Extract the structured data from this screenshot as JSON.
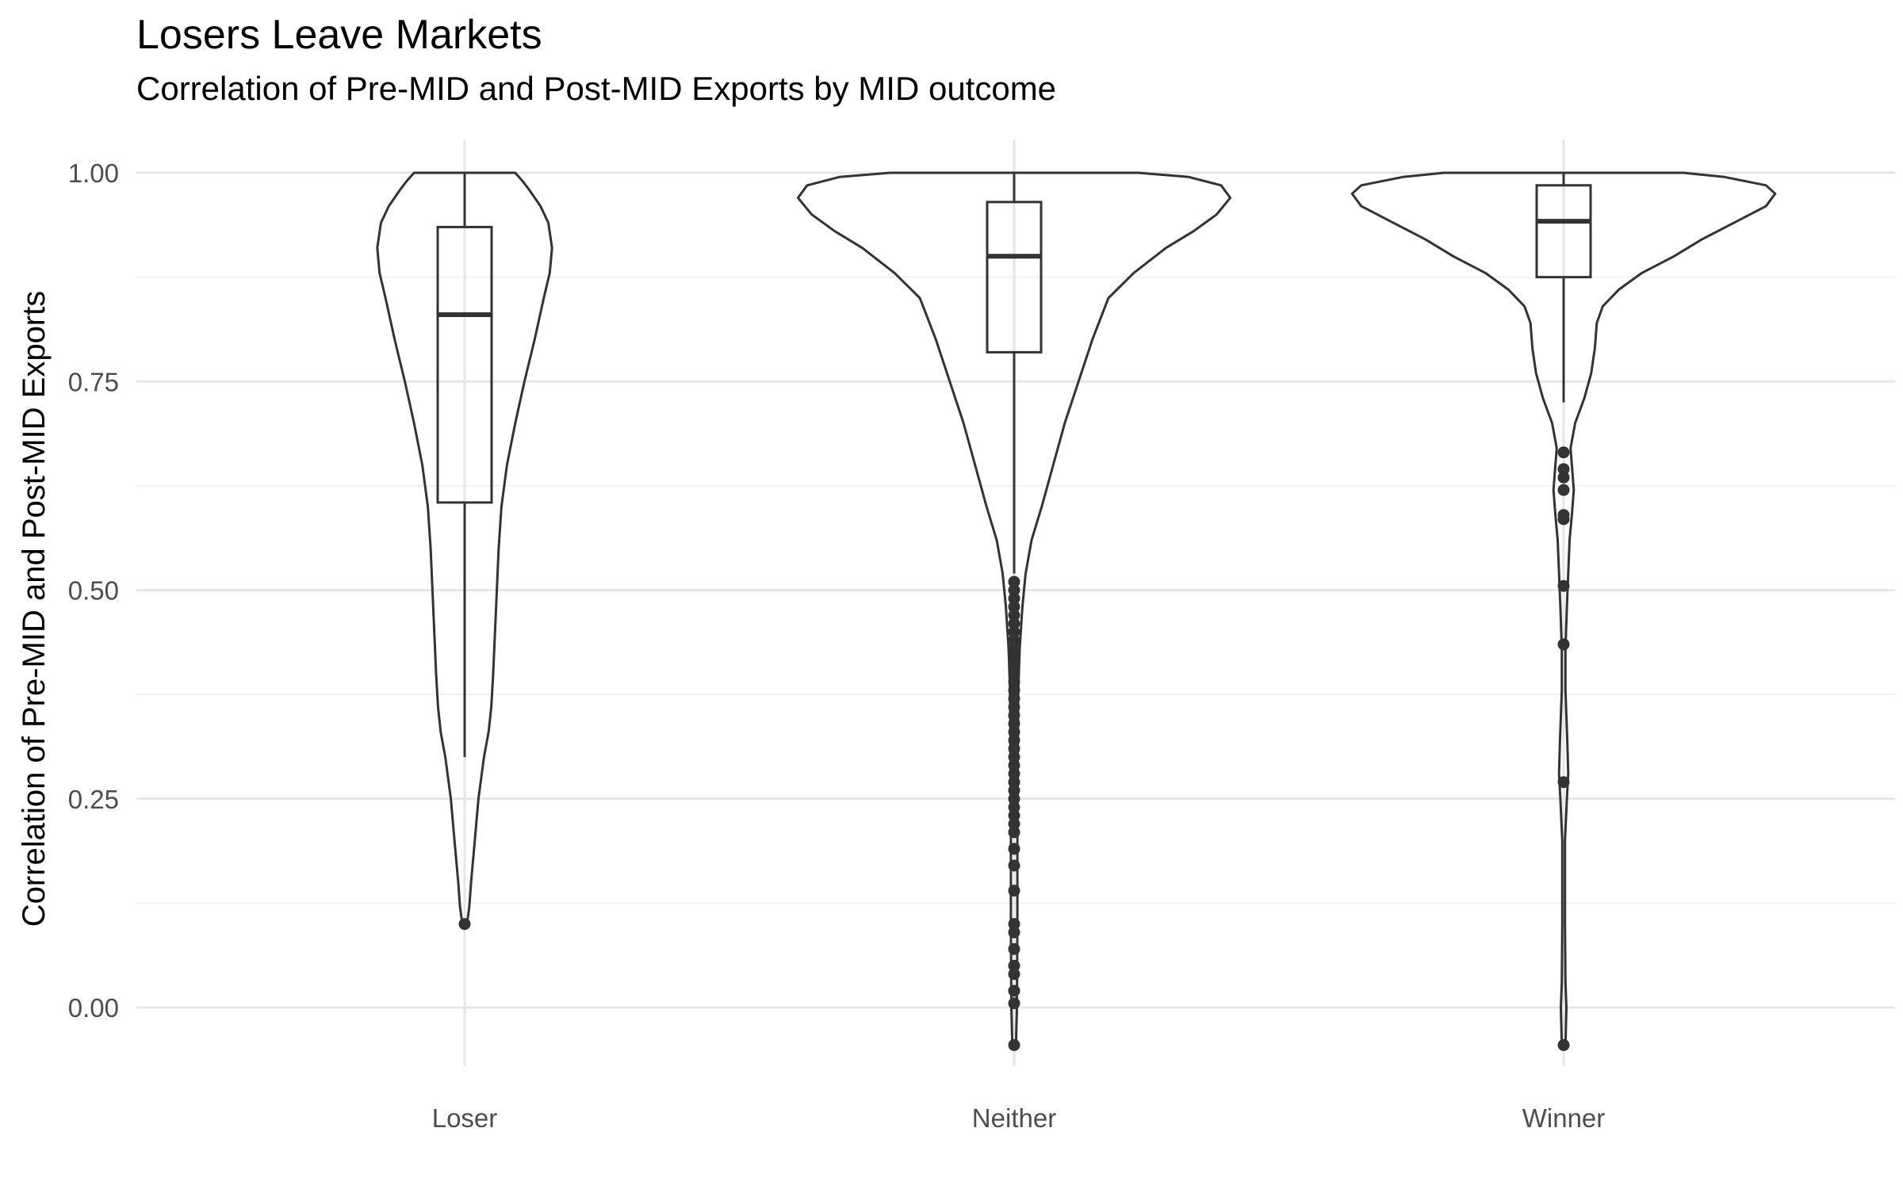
{
  "chart_data": {
    "type": "violin",
    "title": "Losers Leave Markets",
    "subtitle": "Correlation of Pre-MID and Post-MID Exports by MID outcome",
    "xlabel": "",
    "ylabel": "Correlation of Pre-MID and Post-MID Exports",
    "categories": [
      "Loser",
      "Neither",
      "Winner"
    ],
    "ylim": [
      -0.07,
      1.04
    ],
    "y_ticks": [
      "0.00",
      "0.25",
      "0.50",
      "0.75",
      "1.00"
    ],
    "grid": true,
    "boxes": [
      {
        "category": "Loser",
        "whisker_low": 0.3,
        "q1": 0.605,
        "median": 0.83,
        "q3": 0.935,
        "whisker_high": 1.0
      },
      {
        "category": "Neither",
        "whisker_low": 0.52,
        "q1": 0.785,
        "median": 0.9,
        "q3": 0.965,
        "whisker_high": 1.0
      },
      {
        "category": "Winner",
        "whisker_low": 0.725,
        "q1": 0.875,
        "median": 0.942,
        "q3": 0.985,
        "whisker_high": 1.0
      }
    ],
    "outliers": [
      {
        "category": "Loser",
        "values": [
          0.1
        ]
      },
      {
        "category": "Neither",
        "values": [
          0.51,
          0.5,
          0.49,
          0.48,
          0.47,
          0.46,
          0.45,
          0.44,
          0.43,
          0.42,
          0.41,
          0.4,
          0.39,
          0.38,
          0.37,
          0.36,
          0.35,
          0.34,
          0.33,
          0.32,
          0.31,
          0.3,
          0.29,
          0.28,
          0.27,
          0.26,
          0.25,
          0.24,
          0.23,
          0.22,
          0.21,
          0.19,
          0.17,
          0.14,
          0.1,
          0.09,
          0.07,
          0.05,
          0.04,
          0.02,
          0.005,
          -0.045
        ]
      },
      {
        "category": "Winner",
        "values": [
          0.665,
          0.645,
          0.635,
          0.62,
          0.59,
          0.585,
          0.505,
          0.435,
          0.27,
          -0.045
        ]
      }
    ],
    "violins": [
      {
        "category": "Loser",
        "min": 0.1,
        "max": 1.0,
        "profile": [
          [
            0.1,
            0.005
          ],
          [
            0.12,
            0.01
          ],
          [
            0.15,
            0.014
          ],
          [
            0.2,
            0.022
          ],
          [
            0.25,
            0.03
          ],
          [
            0.3,
            0.042
          ],
          [
            0.33,
            0.052
          ],
          [
            0.36,
            0.058
          ],
          [
            0.4,
            0.062
          ],
          [
            0.45,
            0.066
          ],
          [
            0.5,
            0.07
          ],
          [
            0.55,
            0.074
          ],
          [
            0.6,
            0.08
          ],
          [
            0.65,
            0.092
          ],
          [
            0.7,
            0.11
          ],
          [
            0.75,
            0.13
          ],
          [
            0.8,
            0.152
          ],
          [
            0.85,
            0.172
          ],
          [
            0.88,
            0.185
          ],
          [
            0.91,
            0.19
          ],
          [
            0.94,
            0.182
          ],
          [
            0.96,
            0.165
          ],
          [
            0.98,
            0.14
          ],
          [
            0.99,
            0.126
          ],
          [
            1.0,
            0.11
          ]
        ]
      },
      {
        "category": "Neither",
        "min": -0.045,
        "max": 1.0,
        "profile": [
          [
            -0.045,
            0.004
          ],
          [
            0.0,
            0.006
          ],
          [
            0.1,
            0.007
          ],
          [
            0.2,
            0.007
          ],
          [
            0.3,
            0.008
          ],
          [
            0.38,
            0.009
          ],
          [
            0.43,
            0.012
          ],
          [
            0.48,
            0.018
          ],
          [
            0.52,
            0.025
          ],
          [
            0.56,
            0.038
          ],
          [
            0.6,
            0.06
          ],
          [
            0.65,
            0.085
          ],
          [
            0.7,
            0.11
          ],
          [
            0.75,
            0.14
          ],
          [
            0.8,
            0.17
          ],
          [
            0.85,
            0.205
          ],
          [
            0.88,
            0.26
          ],
          [
            0.91,
            0.33
          ],
          [
            0.93,
            0.39
          ],
          [
            0.95,
            0.44
          ],
          [
            0.97,
            0.47
          ],
          [
            0.985,
            0.45
          ],
          [
            0.995,
            0.38
          ],
          [
            1.0,
            0.27
          ]
        ]
      },
      {
        "category": "Winner",
        "min": -0.045,
        "max": 1.0,
        "profile": [
          [
            -0.045,
            0.004
          ],
          [
            0.0,
            0.006
          ],
          [
            0.03,
            0.004
          ],
          [
            0.1,
            0.003
          ],
          [
            0.2,
            0.003
          ],
          [
            0.25,
            0.007
          ],
          [
            0.28,
            0.01
          ],
          [
            0.32,
            0.008
          ],
          [
            0.38,
            0.004
          ],
          [
            0.43,
            0.004
          ],
          [
            0.48,
            0.007
          ],
          [
            0.52,
            0.01
          ],
          [
            0.56,
            0.013
          ],
          [
            0.59,
            0.018
          ],
          [
            0.62,
            0.022
          ],
          [
            0.65,
            0.018
          ],
          [
            0.67,
            0.015
          ],
          [
            0.7,
            0.025
          ],
          [
            0.73,
            0.045
          ],
          [
            0.76,
            0.06
          ],
          [
            0.79,
            0.068
          ],
          [
            0.82,
            0.072
          ],
          [
            0.84,
            0.085
          ],
          [
            0.86,
            0.12
          ],
          [
            0.88,
            0.17
          ],
          [
            0.9,
            0.24
          ],
          [
            0.92,
            0.3
          ],
          [
            0.94,
            0.37
          ],
          [
            0.96,
            0.44
          ],
          [
            0.975,
            0.46
          ],
          [
            0.985,
            0.44
          ],
          [
            0.995,
            0.35
          ],
          [
            1.0,
            0.26
          ]
        ]
      }
    ],
    "colors": {
      "line": "#333333",
      "grid_major": "#e6e6e6",
      "grid_minor": "#f1f1f1",
      "axis_text": "#4d4d4d",
      "title": "#000000"
    }
  }
}
